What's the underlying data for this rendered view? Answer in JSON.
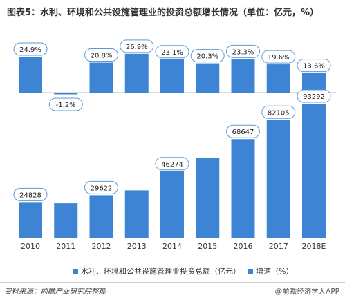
{
  "title": "图表5：水利、环境和公共设施管理业的投资总额增长情况（单位：亿元，%）",
  "source": "资料来源：前瞻产业研究院整理",
  "brand": "@前瞻经济学人APP",
  "colors": {
    "bar": "#3d85d4",
    "text": "#333333"
  },
  "chart_data": [
    {
      "type": "bar",
      "categories": [
        "2010",
        "2011",
        "2012",
        "2013",
        "2014",
        "2015",
        "2016",
        "2017",
        "2018E"
      ],
      "series": [
        {
          "name": "增速（%）",
          "values": [
            24.9,
            -1.2,
            20.8,
            26.9,
            23.1,
            20.3,
            23.3,
            19.6,
            13.6
          ]
        }
      ],
      "labels": [
        "24.9%",
        "-1.2%",
        "20.8%",
        "26.9%",
        "23.1%",
        "20.3%",
        "23.3%",
        "19.6%",
        "13.6%"
      ],
      "show_label": [
        true,
        true,
        true,
        true,
        true,
        true,
        true,
        true,
        true
      ]
    },
    {
      "type": "bar",
      "categories": [
        "2010",
        "2011",
        "2012",
        "2013",
        "2014",
        "2015",
        "2016",
        "2017",
        "2018E"
      ],
      "series": [
        {
          "name": "水利、环境和公共设施管理业投资总额（亿元）",
          "values": [
            24828,
            24000,
            29622,
            33000,
            46274,
            55700,
            68647,
            82105,
            93292
          ]
        }
      ],
      "labels": [
        "24828",
        "",
        "29622",
        "",
        "46274",
        "",
        "68647",
        "82105",
        "93292"
      ],
      "show_label": [
        true,
        false,
        true,
        false,
        true,
        false,
        true,
        true,
        true
      ]
    }
  ],
  "legend": [
    {
      "label": "水利、环境和公共设施管理业投资总额（亿元）"
    },
    {
      "label": "增速（%）"
    }
  ]
}
